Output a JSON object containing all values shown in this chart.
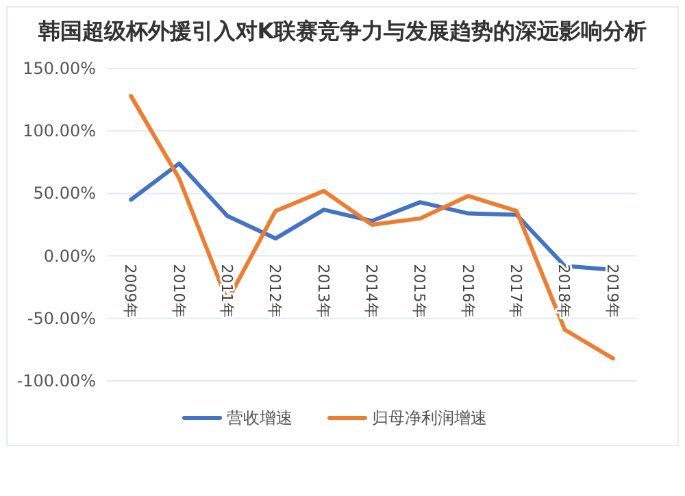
{
  "chart_data": {
    "type": "line",
    "title": "韩国超级杯外援引入对K联赛竞争力与发展趋势的深远影响分析",
    "categories": [
      "2009年",
      "2010年",
      "2011年",
      "2012年",
      "2013年",
      "2014年",
      "2015年",
      "2016年",
      "2017年",
      "2018年",
      "2019年"
    ],
    "series": [
      {
        "name": "营收增速",
        "color": "#4472c4",
        "values": [
          45,
          74,
          32,
          14,
          37,
          28,
          43,
          34,
          33,
          -8,
          -11
        ]
      },
      {
        "name": "归母净利润增速",
        "color": "#ed7d31",
        "values": [
          128,
          62,
          -36,
          36,
          52,
          25,
          30,
          48,
          36,
          -59,
          -82
        ]
      }
    ],
    "ylim": [
      -100,
      150
    ],
    "yticks": [
      {
        "value": -100,
        "label": "-100.00%"
      },
      {
        "value": -50,
        "label": "-50.00%"
      },
      {
        "value": 0,
        "label": "0.00%"
      },
      {
        "value": 50,
        "label": "50.00%"
      },
      {
        "value": 100,
        "label": "100.00%"
      },
      {
        "value": 150,
        "label": "150.00%"
      }
    ],
    "grid": "y",
    "legend": "bottom",
    "marker": "none",
    "line_style": "solid"
  }
}
